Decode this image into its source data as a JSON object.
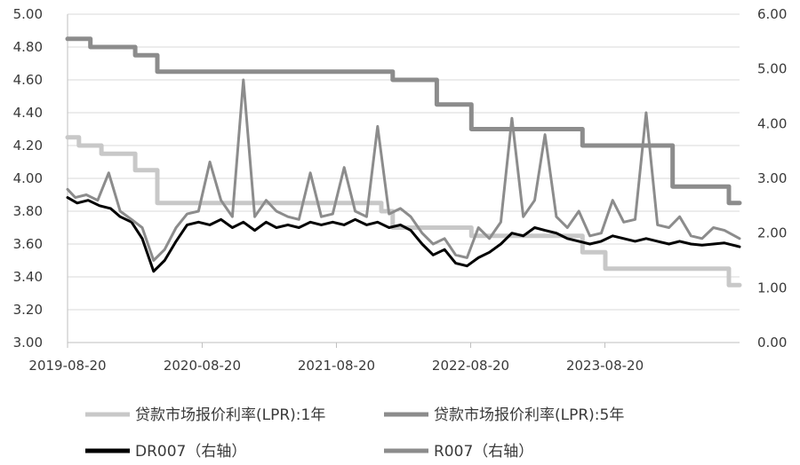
{
  "chart_data": {
    "type": "line",
    "title": "",
    "xlabel": "",
    "ylabel": "",
    "x_ticks": [
      "2019-08-20",
      "2020-08-20",
      "2021-08-20",
      "2022-08-20",
      "2023-08-20"
    ],
    "x_range": [
      "2019-08-20",
      "2024-08-20"
    ],
    "y_left": {
      "range": [
        3.0,
        5.0
      ],
      "ticks": [
        "3.00",
        "3.20",
        "3.40",
        "3.60",
        "3.80",
        "4.00",
        "4.20",
        "4.40",
        "4.60",
        "4.80",
        "5.00"
      ]
    },
    "y_right": {
      "range": [
        0.0,
        6.0
      ],
      "ticks": [
        "0.00",
        "1.00",
        "2.00",
        "3.00",
        "4.00",
        "5.00",
        "6.00"
      ]
    },
    "grid": true,
    "legend_position": "bottom",
    "series": [
      {
        "name": "贷款市场报价利率(LPR):1年",
        "axis": "left",
        "color": "#c8c8c8",
        "step": true,
        "points": [
          [
            "2019-08-20",
            4.25
          ],
          [
            "2019-09-20",
            4.2
          ],
          [
            "2019-11-20",
            4.15
          ],
          [
            "2020-02-20",
            4.05
          ],
          [
            "2020-04-20",
            3.85
          ],
          [
            "2021-12-20",
            3.8
          ],
          [
            "2022-01-20",
            3.7
          ],
          [
            "2022-08-22",
            3.65
          ],
          [
            "2023-06-20",
            3.55
          ],
          [
            "2023-08-21",
            3.45
          ],
          [
            "2024-07-22",
            3.35
          ]
        ]
      },
      {
        "name": "贷款市场报价利率(LPR):5年",
        "axis": "left",
        "color": "#8c8c8c",
        "step": true,
        "points": [
          [
            "2019-08-20",
            4.85
          ],
          [
            "2019-10-21",
            4.8
          ],
          [
            "2020-02-20",
            4.75
          ],
          [
            "2020-04-20",
            4.65
          ],
          [
            "2022-01-20",
            4.6
          ],
          [
            "2022-05-20",
            4.45
          ],
          [
            "2022-08-22",
            4.3
          ],
          [
            "2023-06-20",
            4.2
          ],
          [
            "2024-02-20",
            3.95
          ],
          [
            "2024-07-22",
            3.85
          ]
        ]
      },
      {
        "name": "DR007（右轴）",
        "axis": "right",
        "color": "#000000",
        "points": [
          [
            "2019-08-20",
            2.65
          ],
          [
            "2019-09-15",
            2.55
          ],
          [
            "2019-10-15",
            2.6
          ],
          [
            "2019-11-15",
            2.5
          ],
          [
            "2019-12-15",
            2.45
          ],
          [
            "2020-01-10",
            2.3
          ],
          [
            "2020-02-10",
            2.2
          ],
          [
            "2020-03-10",
            1.9
          ],
          [
            "2020-04-10",
            1.3
          ],
          [
            "2020-05-10",
            1.5
          ],
          [
            "2020-06-10",
            1.85
          ],
          [
            "2020-07-10",
            2.15
          ],
          [
            "2020-08-10",
            2.2
          ],
          [
            "2020-09-10",
            2.15
          ],
          [
            "2020-10-10",
            2.25
          ],
          [
            "2020-11-10",
            2.1
          ],
          [
            "2020-12-10",
            2.2
          ],
          [
            "2021-01-10",
            2.05
          ],
          [
            "2021-02-10",
            2.2
          ],
          [
            "2021-03-10",
            2.1
          ],
          [
            "2021-04-10",
            2.15
          ],
          [
            "2021-05-10",
            2.1
          ],
          [
            "2021-06-10",
            2.2
          ],
          [
            "2021-07-10",
            2.15
          ],
          [
            "2021-08-10",
            2.2
          ],
          [
            "2021-09-10",
            2.15
          ],
          [
            "2021-10-10",
            2.25
          ],
          [
            "2021-11-10",
            2.15
          ],
          [
            "2021-12-10",
            2.2
          ],
          [
            "2022-01-10",
            2.1
          ],
          [
            "2022-02-10",
            2.15
          ],
          [
            "2022-03-10",
            2.05
          ],
          [
            "2022-04-10",
            1.8
          ],
          [
            "2022-05-10",
            1.6
          ],
          [
            "2022-06-10",
            1.7
          ],
          [
            "2022-07-10",
            1.45
          ],
          [
            "2022-08-10",
            1.4
          ],
          [
            "2022-09-10",
            1.55
          ],
          [
            "2022-10-10",
            1.65
          ],
          [
            "2022-11-10",
            1.8
          ],
          [
            "2022-12-10",
            2.0
          ],
          [
            "2023-01-10",
            1.95
          ],
          [
            "2023-02-10",
            2.1
          ],
          [
            "2023-03-10",
            2.05
          ],
          [
            "2023-04-10",
            2.0
          ],
          [
            "2023-05-10",
            1.9
          ],
          [
            "2023-06-10",
            1.85
          ],
          [
            "2023-07-10",
            1.8
          ],
          [
            "2023-08-10",
            1.85
          ],
          [
            "2023-09-10",
            1.95
          ],
          [
            "2023-10-10",
            1.9
          ],
          [
            "2023-11-10",
            1.85
          ],
          [
            "2023-12-10",
            1.9
          ],
          [
            "2024-01-10",
            1.85
          ],
          [
            "2024-02-10",
            1.8
          ],
          [
            "2024-03-10",
            1.85
          ],
          [
            "2024-04-10",
            1.8
          ],
          [
            "2024-05-10",
            1.78
          ],
          [
            "2024-06-10",
            1.8
          ],
          [
            "2024-07-10",
            1.82
          ],
          [
            "2024-08-20",
            1.75
          ]
        ]
      },
      {
        "name": "R007（右轴）",
        "axis": "right",
        "color": "#8c8c8c",
        "points": [
          [
            "2019-08-20",
            2.8
          ],
          [
            "2019-09-10",
            2.65
          ],
          [
            "2019-10-10",
            2.7
          ],
          [
            "2019-11-10",
            2.6
          ],
          [
            "2019-12-10",
            3.1
          ],
          [
            "2020-01-10",
            2.4
          ],
          [
            "2020-02-10",
            2.25
          ],
          [
            "2020-03-10",
            2.1
          ],
          [
            "2020-04-10",
            1.5
          ],
          [
            "2020-05-10",
            1.7
          ],
          [
            "2020-06-10",
            2.1
          ],
          [
            "2020-07-10",
            2.35
          ],
          [
            "2020-08-10",
            2.4
          ],
          [
            "2020-09-10",
            3.3
          ],
          [
            "2020-10-10",
            2.6
          ],
          [
            "2020-11-10",
            2.3
          ],
          [
            "2020-12-10",
            4.8
          ],
          [
            "2021-01-10",
            2.3
          ],
          [
            "2021-02-10",
            2.6
          ],
          [
            "2021-03-10",
            2.4
          ],
          [
            "2021-04-10",
            2.3
          ],
          [
            "2021-05-10",
            2.25
          ],
          [
            "2021-06-10",
            3.1
          ],
          [
            "2021-07-10",
            2.3
          ],
          [
            "2021-08-10",
            2.35
          ],
          [
            "2021-09-10",
            3.2
          ],
          [
            "2021-10-10",
            2.4
          ],
          [
            "2021-11-10",
            2.3
          ],
          [
            "2021-12-10",
            3.95
          ],
          [
            "2022-01-10",
            2.35
          ],
          [
            "2022-02-10",
            2.45
          ],
          [
            "2022-03-10",
            2.3
          ],
          [
            "2022-04-10",
            2.0
          ],
          [
            "2022-05-10",
            1.8
          ],
          [
            "2022-06-10",
            1.9
          ],
          [
            "2022-07-10",
            1.6
          ],
          [
            "2022-08-10",
            1.55
          ],
          [
            "2022-09-10",
            2.1
          ],
          [
            "2022-10-10",
            1.9
          ],
          [
            "2022-11-10",
            2.2
          ],
          [
            "2022-12-10",
            4.1
          ],
          [
            "2023-01-10",
            2.3
          ],
          [
            "2023-02-10",
            2.6
          ],
          [
            "2023-03-10",
            3.8
          ],
          [
            "2023-04-10",
            2.3
          ],
          [
            "2023-05-10",
            2.1
          ],
          [
            "2023-06-10",
            2.4
          ],
          [
            "2023-07-10",
            1.95
          ],
          [
            "2023-08-10",
            2.0
          ],
          [
            "2023-09-10",
            2.6
          ],
          [
            "2023-10-10",
            2.2
          ],
          [
            "2023-11-10",
            2.25
          ],
          [
            "2023-12-10",
            4.2
          ],
          [
            "2024-01-10",
            2.15
          ],
          [
            "2024-02-10",
            2.1
          ],
          [
            "2024-03-10",
            2.3
          ],
          [
            "2024-04-10",
            1.95
          ],
          [
            "2024-05-10",
            1.9
          ],
          [
            "2024-06-10",
            2.1
          ],
          [
            "2024-07-10",
            2.05
          ],
          [
            "2024-08-20",
            1.9
          ]
        ]
      }
    ]
  }
}
